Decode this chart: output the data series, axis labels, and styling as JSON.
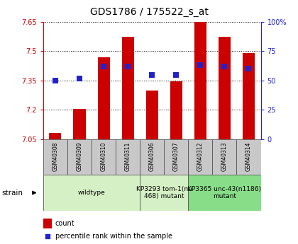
{
  "title": "GDS1786 / 175522_s_at",
  "samples": [
    "GSM40308",
    "GSM40309",
    "GSM40310",
    "GSM40311",
    "GSM40306",
    "GSM40307",
    "GSM40312",
    "GSM40313",
    "GSM40314"
  ],
  "counts": [
    7.08,
    7.205,
    7.47,
    7.575,
    7.3,
    7.345,
    7.65,
    7.575,
    7.49
  ],
  "percentiles": [
    50,
    52,
    62,
    62,
    55,
    55,
    63,
    62,
    60
  ],
  "ylim_left": [
    7.05,
    7.65
  ],
  "ylim_right": [
    0,
    100
  ],
  "yticks_left": [
    7.05,
    7.2,
    7.35,
    7.5,
    7.65
  ],
  "yticks_left_labels": [
    "7.05",
    "7.2",
    "7.35",
    "7.5",
    "7.65"
  ],
  "yticks_right": [
    0,
    25,
    50,
    75,
    100
  ],
  "yticks_right_labels": [
    "0",
    "25",
    "50",
    "75",
    "100%"
  ],
  "bar_color": "#cc0000",
  "dot_color": "#2222cc",
  "bar_width": 0.5,
  "groups": [
    {
      "label": "wildtype",
      "start": 0,
      "end": 4,
      "color": "#d4f0c4"
    },
    {
      "label": "KP3293 tom-1(nu\n468) mutant",
      "start": 4,
      "end": 6,
      "color": "#d4f0c4"
    },
    {
      "label": "KP3365 unc-43(n1186)\nmutant",
      "start": 6,
      "end": 9,
      "color": "#88dd88"
    }
  ],
  "strain_label": "strain",
  "legend_count": "count",
  "legend_percentile": "percentile rank within the sample",
  "dot_size": 30,
  "base_value": 7.05,
  "bg_color": "#ffffff",
  "plot_bg": "#ffffff",
  "sample_box_color": "#c8c8c8",
  "grid_color": "#000000",
  "title_fontsize": 10,
  "tick_fontsize": 7,
  "sample_fontsize": 5.5,
  "group_fontsize": 6.5,
  "legend_fontsize": 7
}
